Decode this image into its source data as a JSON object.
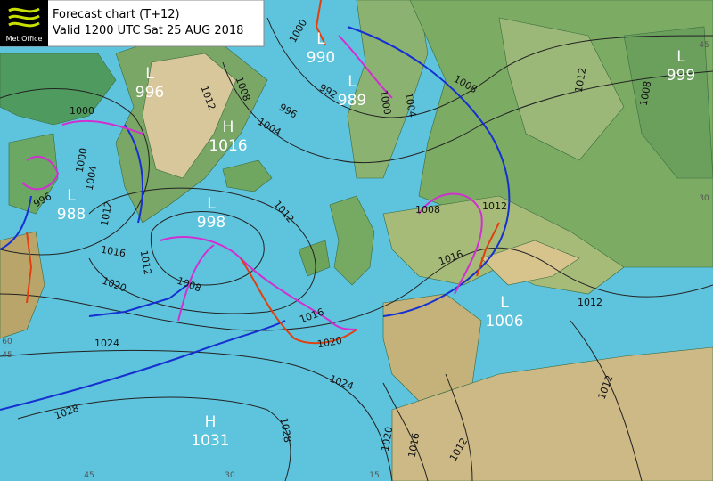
{
  "header": {
    "logo": "Met Office",
    "title": "Forecast chart (T+12)",
    "valid": "Valid 1200 UTC Sat 25 AUG 2018"
  },
  "centers": [
    {
      "type": "L",
      "pressure": 996
    },
    {
      "type": "H",
      "pressure": 1016
    },
    {
      "type": "L",
      "pressure": 990
    },
    {
      "type": "L",
      "pressure": 989
    },
    {
      "type": "L",
      "pressure": 988
    },
    {
      "type": "L",
      "pressure": 998
    },
    {
      "type": "L",
      "pressure": 1006
    },
    {
      "type": "H",
      "pressure": 1031
    },
    {
      "type": "L",
      "pressure": 999
    }
  ],
  "isobar_labels": [
    1000,
    1008,
    1012,
    996,
    1004,
    992,
    1000,
    1004,
    1008,
    1012,
    1008,
    1000,
    1000,
    1004,
    1012,
    996,
    1012,
    1008,
    1012,
    1016,
    1012,
    1008,
    1020,
    1016,
    1016,
    1012,
    1024,
    1020,
    1024,
    1028,
    1028,
    1020,
    1016,
    1012,
    1012
  ],
  "grid_labels": [
    "60",
    "45",
    "45",
    "30",
    "15",
    "45",
    "30"
  ]
}
